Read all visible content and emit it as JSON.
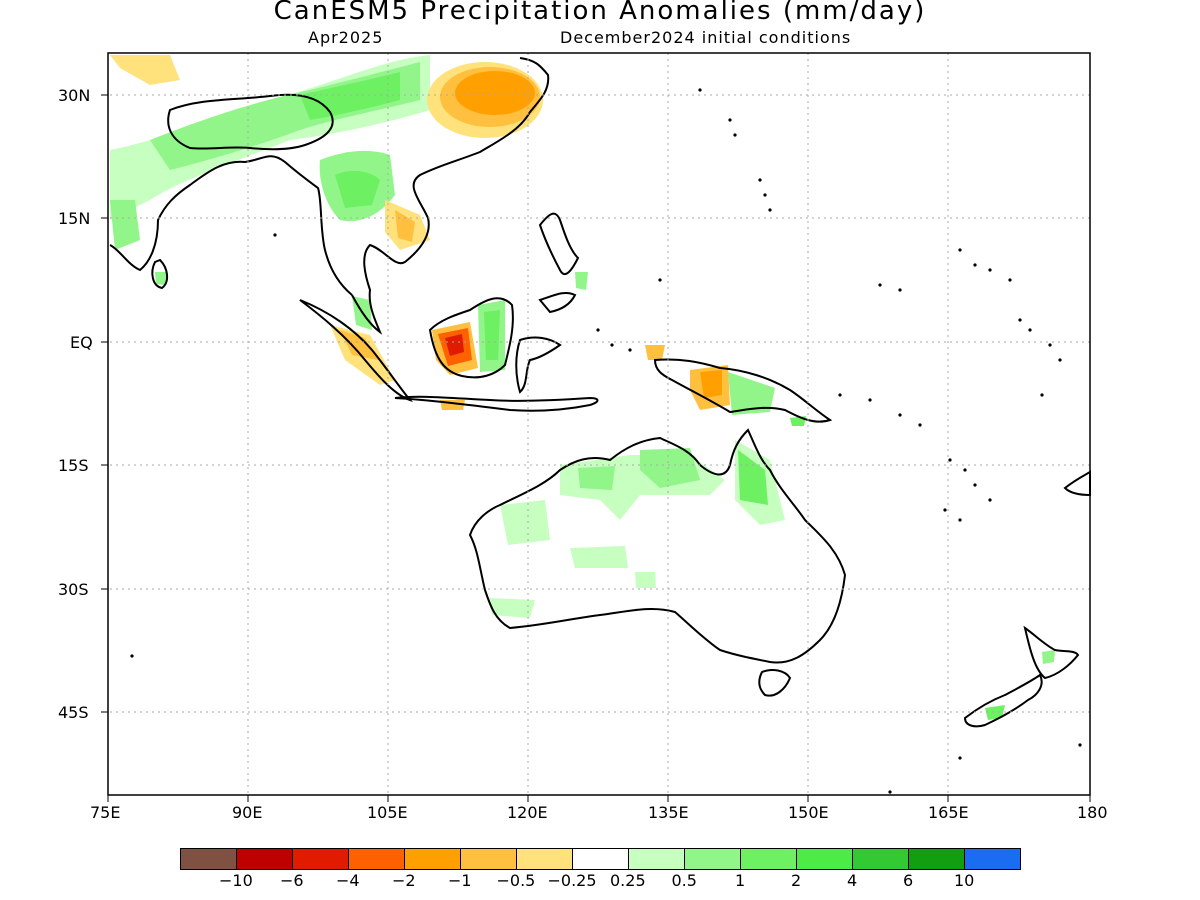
{
  "title": "CanESM5 Precipitation Anomalies (mm/day)",
  "valid_month": "Apr2025",
  "init_conditions": "December2024 initial conditions",
  "lon_labels": [
    "75E",
    "90E",
    "105E",
    "120E",
    "135E",
    "150E",
    "165E",
    "180"
  ],
  "lat_labels": [
    "30N",
    "15N",
    "EQ",
    "15S",
    "30S",
    "45S"
  ],
  "colorbar": {
    "colors": [
      "#7f5142",
      "#be0000",
      "#e01b00",
      "#ff6000",
      "#ffa000",
      "#ffbf3f",
      "#ffe27b",
      "#ffffff",
      "#c6ffc0",
      "#91f58a",
      "#6df062",
      "#4ceb45",
      "#33c933",
      "#119f10",
      "#1a6cf0"
    ],
    "labels": [
      "-10",
      "-6",
      "-4",
      "-2",
      "-1",
      "-0.5",
      "-0.25",
      "0.25",
      "0.5",
      "1",
      "2",
      "4",
      "6",
      "10"
    ]
  }
}
